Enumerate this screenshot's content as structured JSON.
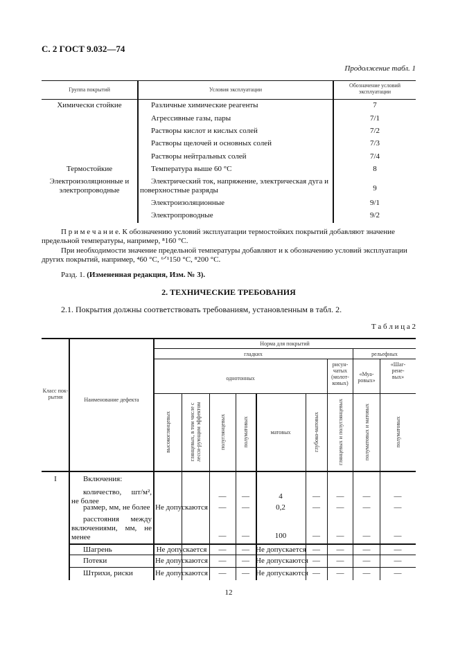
{
  "header": {
    "page_code": "С. 2 ГОСТ 9.032—74",
    "continuation": "Продолжение табл. 1"
  },
  "table1": {
    "headers": [
      "Группа покрытий",
      "Условия эксплуатации",
      "Обозначение условий эксплуатации"
    ],
    "rows": [
      {
        "group": "Химически стойкие",
        "condition": "Различные химические реагенты",
        "code": "7"
      },
      {
        "group": "",
        "condition": "Агрессивные газы, пары",
        "code": "7/1"
      },
      {
        "group": "",
        "condition": "Растворы кислот и кислых солей",
        "code": "7/2"
      },
      {
        "group": "",
        "condition": "Растворы щелочей и основных солей",
        "code": "7/3"
      },
      {
        "group": "",
        "condition": "Растворы нейтральных солей",
        "code": "7/4"
      },
      {
        "group": "Термостойкие",
        "condition": "Температура выше 60 °С",
        "code": "8"
      },
      {
        "group": "Электроизоляционные и электропроводные",
        "condition": "Электрический ток, напряжение, электрическая дуга и поверхностные разряды",
        "code": "9"
      },
      {
        "group": "",
        "condition": "Электроизоляционные",
        "code": "9/1"
      },
      {
        "group": "",
        "condition": "Электропроводные",
        "code": "9/2"
      }
    ]
  },
  "note": {
    "label": "П р и м е ч а н и е.",
    "text1a": "К обозначению условий эксплуатации термостойких покрытий добавляют значение",
    "text1b": "предельной температуры, например, ⁸160 °С.",
    "text2a": "При необходимости значение предельной температуры добавляют и к обозначению условий эксплуатации",
    "text2b": "других покрытий, например, ⁴60 °С, ⁶ᐟ¹150 °С, ⁸200 °С."
  },
  "revision": {
    "prefix": "Разд. 1.",
    "text": "(Измененная редакция, Изм. № 3)."
  },
  "section": {
    "title": "2. ТЕХНИЧЕСКИЕ ТРЕБОВАНИЯ",
    "para": "2.1. Покрытия должны соответствовать требованиям, установленным в табл. 2.",
    "table_label": "Т а б л и ц а 2"
  },
  "table2": {
    "h_class": "Класс пок-рытия",
    "h_name": "Наименование дефекта",
    "h_norm": "Норма для покрытий",
    "h_smooth": "гладких",
    "h_relief": "рельефных",
    "h_mono": "однотонных",
    "h_pattern": "рисун-чатых (молот-ковых)",
    "h_moire": "«Муа-ровых»",
    "h_shagreen": "«Шаг-рене-вых»",
    "cols": [
      "высокоглянцевых",
      "глянцевых, в том числе с лесси-рующим эффектом",
      "полуглянцевых",
      "полуматовых",
      "матовых",
      "глубоко-матовых",
      "глянцевых и полуглянцевых",
      "полуматовых и матовых",
      "полуматовых"
    ],
    "class_I": "I",
    "inclusions": "Включения:",
    "qty": "количество, шт/м², не более",
    "size": "размер, мм, не более",
    "dist": "расстояния между включениями, мм, не менее",
    "not_allowed_pl": "Не допускаются",
    "qty_val": "4",
    "size_val": "0,2",
    "dist_val": "100",
    "dash": "—",
    "rows": [
      {
        "name": "Шагрень",
        "a": "Не допускается",
        "m": "Не допускается"
      },
      {
        "name": "Потеки",
        "a": "Не допускаются",
        "m": "Не допускаются"
      },
      {
        "name": "Штрихи, риски",
        "a": "Не допускаются",
        "m": "Не допускаются"
      }
    ]
  },
  "footer": {
    "page_number": "12"
  }
}
